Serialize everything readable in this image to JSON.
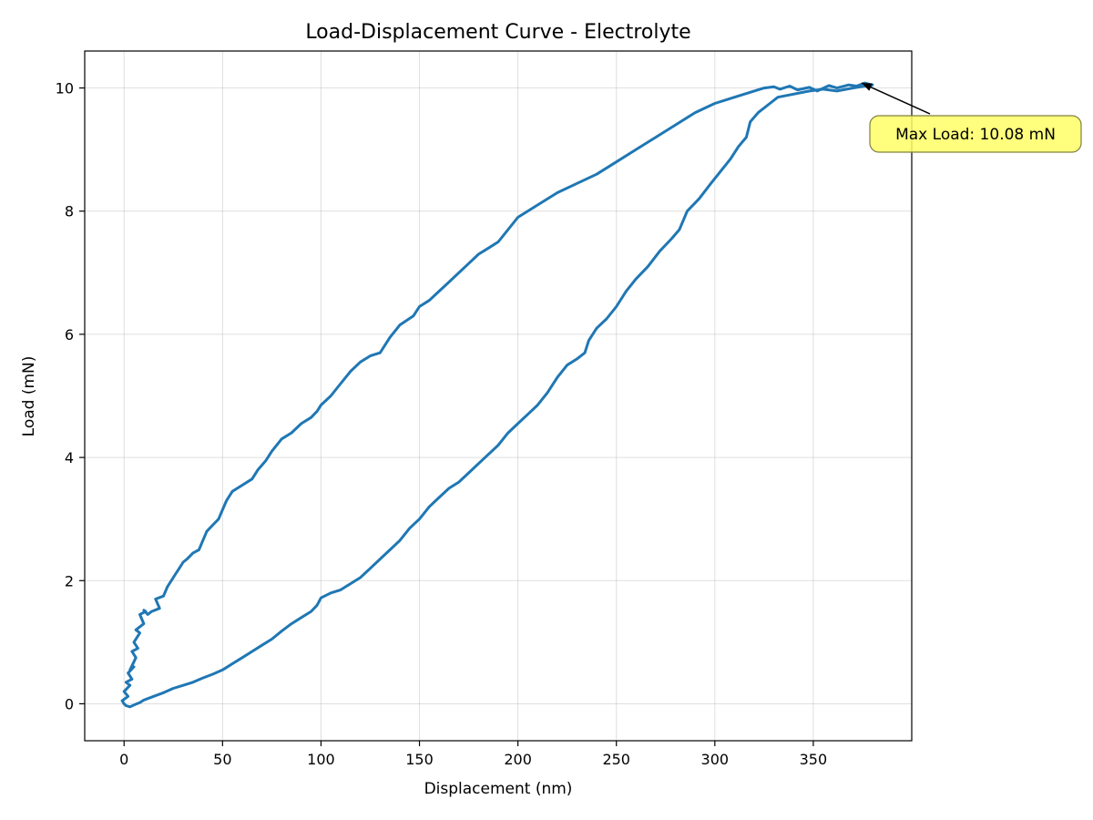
{
  "chart_data": {
    "type": "line",
    "title": "Load-Displacement Curve - Electrolyte",
    "xlabel": "Displacement (nm)",
    "ylabel": "Load (mN)",
    "xlim": [
      -20,
      400
    ],
    "ylim": [
      -0.6,
      10.6
    ],
    "xticks": [
      0,
      50,
      100,
      150,
      200,
      250,
      300,
      350
    ],
    "yticks": [
      0,
      2,
      4,
      6,
      8,
      10
    ],
    "grid": true,
    "series": [
      {
        "color": "#1f77b4",
        "x": [
          0,
          -1,
          2,
          0,
          3,
          1,
          4,
          2,
          5,
          3,
          6,
          4,
          7,
          5,
          8,
          6,
          10,
          8,
          11,
          10,
          12,
          14,
          18,
          16,
          20,
          22,
          24,
          26,
          28,
          30,
          32,
          35,
          38,
          40,
          42,
          45,
          48,
          50,
          52,
          55,
          60,
          65,
          68,
          72,
          75,
          80,
          85,
          90,
          95,
          98,
          100,
          105,
          110,
          115,
          120,
          125,
          130,
          135,
          140,
          147,
          150,
          155,
          160,
          165,
          170,
          175,
          180,
          185,
          190,
          195,
          200,
          210,
          220,
          230,
          240,
          250,
          260,
          270,
          280,
          290,
          300,
          310,
          320,
          325,
          330,
          333,
          338,
          342,
          348,
          352,
          358,
          362,
          368,
          372,
          376,
          380
        ],
        "y": [
          0.0,
          0.05,
          0.12,
          0.2,
          0.3,
          0.35,
          0.4,
          0.5,
          0.6,
          0.55,
          0.75,
          0.85,
          0.9,
          1.0,
          1.15,
          1.2,
          1.3,
          1.45,
          1.5,
          1.52,
          1.45,
          1.5,
          1.55,
          1.7,
          1.75,
          1.9,
          2.0,
          2.1,
          2.2,
          2.3,
          2.35,
          2.45,
          2.5,
          2.65,
          2.8,
          2.9,
          3.0,
          3.15,
          3.3,
          3.45,
          3.55,
          3.65,
          3.8,
          3.95,
          4.1,
          4.3,
          4.4,
          4.55,
          4.65,
          4.75,
          4.85,
          5.0,
          5.2,
          5.4,
          5.55,
          5.65,
          5.7,
          5.95,
          6.15,
          6.3,
          6.45,
          6.55,
          6.7,
          6.85,
          7.0,
          7.15,
          7.3,
          7.4,
          7.5,
          7.7,
          7.9,
          8.1,
          8.3,
          8.45,
          8.6,
          8.8,
          9.0,
          9.2,
          9.4,
          9.6,
          9.75,
          9.85,
          9.95,
          10.0,
          10.02,
          9.98,
          10.03,
          9.97,
          10.01,
          9.95,
          10.04,
          10.0,
          10.05,
          10.03,
          10.08,
          10.05
        ]
      },
      {
        "color": "#1f77b4",
        "x": [
          380,
          370,
          362,
          355,
          348,
          340,
          332,
          328,
          322,
          318,
          316,
          312,
          308,
          303,
          298,
          292,
          286,
          282,
          278,
          272,
          266,
          260,
          255,
          250,
          245,
          240,
          236,
          234,
          230,
          225,
          220,
          215,
          210,
          205,
          200,
          195,
          190,
          185,
          180,
          175,
          170,
          165,
          160,
          155,
          150,
          145,
          140,
          135,
          130,
          125,
          120,
          115,
          110,
          105,
          100,
          98,
          95,
          90,
          85,
          80,
          75,
          70,
          65,
          60,
          55,
          50,
          45,
          40,
          35,
          30,
          25,
          20,
          15,
          10,
          8,
          5,
          3,
          1,
          0
        ],
        "y": [
          10.05,
          10.0,
          9.95,
          9.98,
          9.95,
          9.9,
          9.85,
          9.75,
          9.6,
          9.45,
          9.2,
          9.05,
          8.85,
          8.65,
          8.45,
          8.2,
          8.0,
          7.7,
          7.55,
          7.35,
          7.1,
          6.9,
          6.7,
          6.45,
          6.25,
          6.1,
          5.9,
          5.7,
          5.6,
          5.5,
          5.3,
          5.05,
          4.85,
          4.7,
          4.55,
          4.4,
          4.2,
          4.05,
          3.9,
          3.75,
          3.6,
          3.5,
          3.35,
          3.2,
          3.0,
          2.85,
          2.65,
          2.5,
          2.35,
          2.2,
          2.05,
          1.95,
          1.85,
          1.8,
          1.72,
          1.6,
          1.5,
          1.4,
          1.3,
          1.18,
          1.05,
          0.95,
          0.85,
          0.75,
          0.65,
          0.55,
          0.48,
          0.42,
          0.35,
          0.3,
          0.25,
          0.18,
          0.12,
          0.06,
          0.02,
          -0.02,
          -0.05,
          -0.03,
          0.0
        ]
      }
    ],
    "annotation": {
      "text": "Max Load: 10.08 mN",
      "point": [
        376,
        10.08
      ],
      "box_color": "#ffff66"
    }
  }
}
